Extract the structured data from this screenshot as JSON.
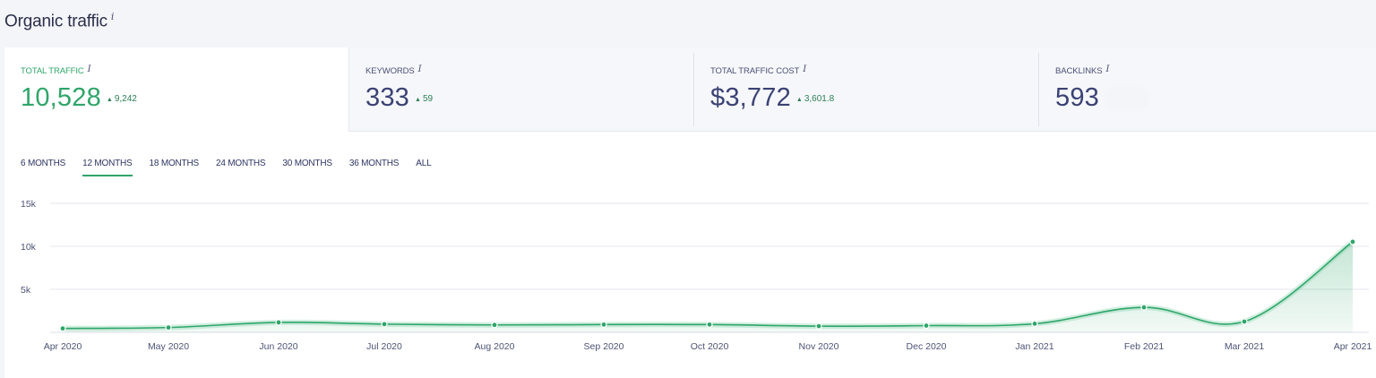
{
  "header": {
    "title": "Organic traffic",
    "info": "i"
  },
  "metrics": [
    {
      "label": "TOTAL TRAFFIC",
      "info": "i",
      "value": "10,528",
      "delta": "9,242"
    },
    {
      "label": "KEYWORDS",
      "info": "i",
      "value": "333",
      "delta": "59"
    },
    {
      "label": "TOTAL TRAFFIC COST",
      "info": "i",
      "value": "$3,772",
      "delta": "3,601.8"
    },
    {
      "label": "BACKLINKS",
      "info": "i",
      "value": "593"
    }
  ],
  "tabs": [
    {
      "label": "6 MONTHS"
    },
    {
      "label": "12 MONTHS",
      "active": true
    },
    {
      "label": "18 MONTHS"
    },
    {
      "label": "24 MONTHS"
    },
    {
      "label": "30 MONTHS"
    },
    {
      "label": "36 MONTHS"
    },
    {
      "label": "ALL"
    }
  ],
  "colors": {
    "accent": "#2fa56a",
    "metric_value": "#3b4274",
    "grid": "#e4e6ec"
  },
  "chart_data": {
    "type": "area",
    "categories": [
      "Apr 2020",
      "May 2020",
      "Jun 2020",
      "Jul 2020",
      "Aug 2020",
      "Sep 2020",
      "Oct 2020",
      "Nov 2020",
      "Dec 2020",
      "Jan 2021",
      "Feb 2021",
      "Mar 2021",
      "Apr 2021"
    ],
    "series": [
      {
        "values": [
          450,
          560,
          1150,
          950,
          860,
          900,
          900,
          720,
          780,
          1000,
          2900,
          1250,
          10528
        ]
      }
    ],
    "yticks": [
      "15k",
      "10k",
      "5k"
    ],
    "ylim": [
      0,
      15000
    ],
    "grid": true,
    "legend": "none"
  }
}
